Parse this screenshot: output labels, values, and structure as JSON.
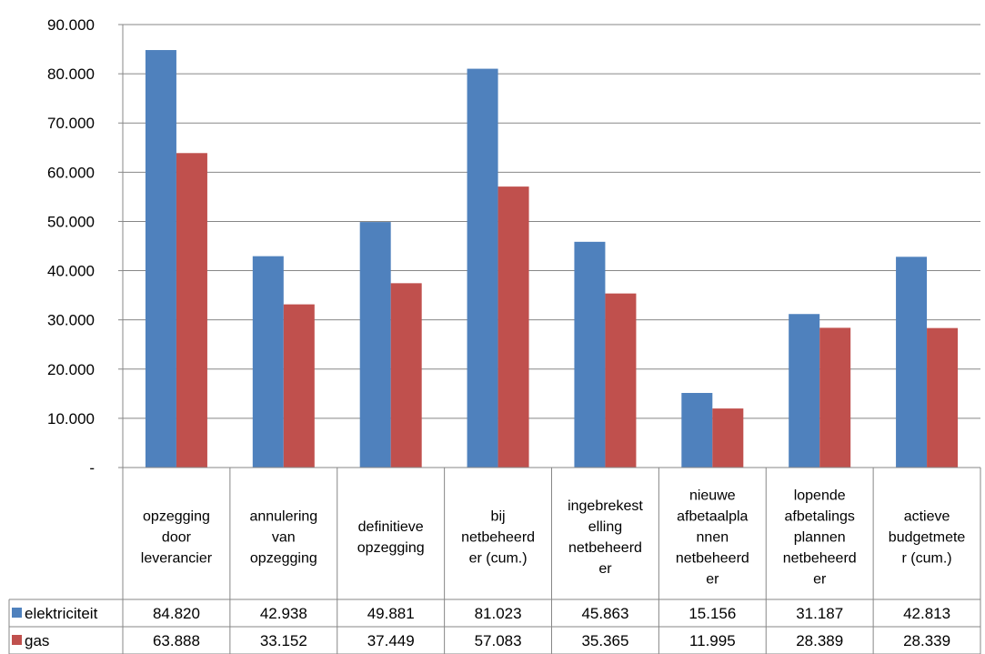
{
  "chart_data": {
    "type": "bar",
    "title": "",
    "xlabel": "",
    "ylabel": "",
    "ylim": [
      0,
      90000
    ],
    "y_ticks": [
      {
        "value": 0,
        "label": "-"
      },
      {
        "value": 10000,
        "label": "10.000"
      },
      {
        "value": 20000,
        "label": "20.000"
      },
      {
        "value": 30000,
        "label": "30.000"
      },
      {
        "value": 40000,
        "label": "40.000"
      },
      {
        "value": 50000,
        "label": "50.000"
      },
      {
        "value": 60000,
        "label": "60.000"
      },
      {
        "value": 70000,
        "label": "70.000"
      },
      {
        "value": 80000,
        "label": "80.000"
      },
      {
        "value": 90000,
        "label": "90.000"
      }
    ],
    "grid": true,
    "legend": "data table",
    "categories": [
      "opzegging door leverancier",
      "annulering van opzegging",
      "definitieve opzegging",
      "bij netbeheerder (cum.)",
      "ingebrekestelling netbeheerder",
      "nieuwe afbetaalplannen netbeheerder",
      "lopende afbetalingsplannen netbeheerder",
      "actieve budgetmeter (cum.)"
    ],
    "category_label_lines": [
      [
        "opzegging",
        "door",
        "leverancier"
      ],
      [
        "annulering",
        "van",
        "opzegging"
      ],
      [
        "definitieve",
        "opzegging"
      ],
      [
        "bij",
        "netbeheerd",
        "er (cum.)"
      ],
      [
        "ingebrekest",
        "elling",
        "netbeheerd",
        "er"
      ],
      [
        "nieuwe",
        "afbetaalpla",
        "nnen",
        "netbeheerd",
        "er"
      ],
      [
        "lopende",
        "afbetalings",
        "plannen",
        "netbeheerd",
        "er"
      ],
      [
        "actieve",
        "budgetmete",
        "r (cum.)"
      ]
    ],
    "series": [
      {
        "name": "elektriciteit",
        "color": "#4f81bd",
        "values": [
          84820,
          42938,
          49881,
          81023,
          45863,
          15156,
          31187,
          42813
        ],
        "value_labels": [
          "84.820",
          "42.938",
          "49.881",
          "81.023",
          "45.863",
          "15.156",
          "31.187",
          "42.813"
        ]
      },
      {
        "name": "gas",
        "color": "#c0504d",
        "values": [
          63888,
          33152,
          37449,
          57083,
          35365,
          11995,
          28389,
          28339
        ],
        "value_labels": [
          "63.888",
          "33.152",
          "37.449",
          "57.083",
          "35.365",
          "11.995",
          "28.389",
          "28.339"
        ]
      }
    ]
  }
}
